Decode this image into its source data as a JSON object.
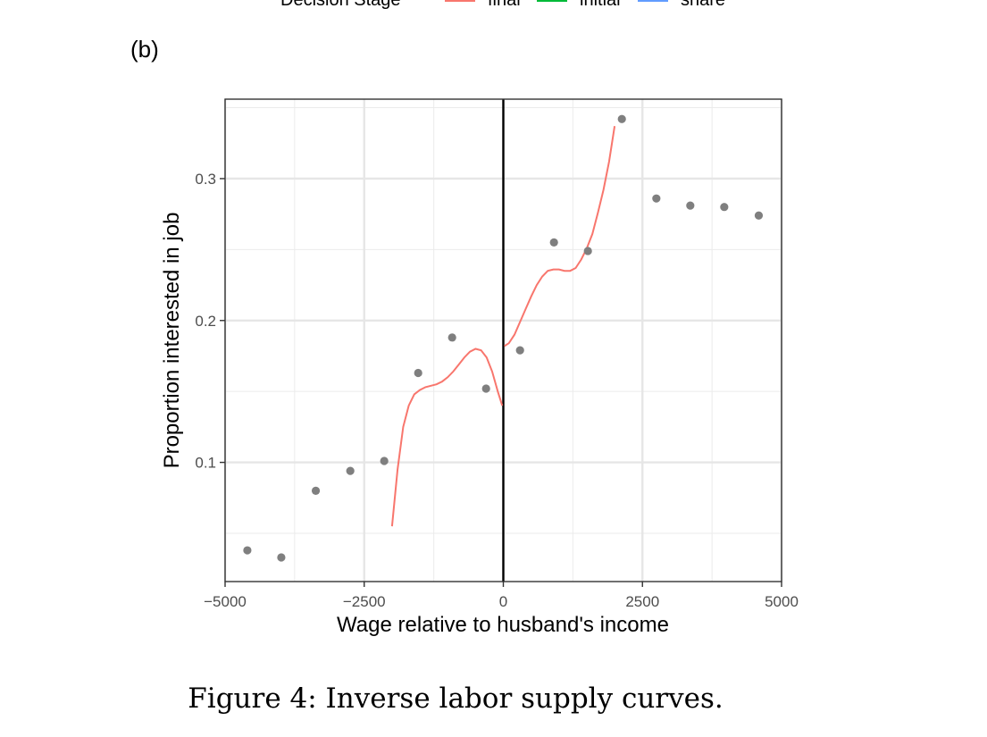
{
  "legend": {
    "title": "Decision Stage",
    "items": [
      {
        "label": "final",
        "color": "#F8766D"
      },
      {
        "label": "initial",
        "color": "#00BA38"
      },
      {
        "label": "share",
        "color": "#619CFF"
      }
    ]
  },
  "panel_label": "(b)",
  "caption": "Figure 4: Inverse labor supply curves.",
  "chart_data": {
    "type": "scatter",
    "title": "",
    "xlabel": "Wage relative to husband's income",
    "ylabel": "Proportion interested in job",
    "xlim": [
      -5000,
      5000
    ],
    "ylim": [
      0.016,
      0.356
    ],
    "x_ticks": [
      -5000,
      -2500,
      0,
      2500,
      5000
    ],
    "x_tick_labels": [
      "−5000",
      "−2500",
      "0",
      "2500",
      "5000"
    ],
    "y_ticks": [
      0.1,
      0.2,
      0.3
    ],
    "y_tick_labels": [
      "0.1",
      "0.2",
      "0.3"
    ],
    "x_minor_gridlines": [
      -3750,
      -1250,
      1250,
      3750
    ],
    "y_minor_gridlines": [
      0.05,
      0.15,
      0.25,
      0.35
    ],
    "grid": true,
    "reference_line_x": 0,
    "point_color": "#7F7F7F",
    "points": [
      {
        "x": -4600,
        "y": 0.038
      },
      {
        "x": -3990,
        "y": 0.033
      },
      {
        "x": -3370,
        "y": 0.08
      },
      {
        "x": -2750,
        "y": 0.094
      },
      {
        "x": -2140,
        "y": 0.101
      },
      {
        "x": -1530,
        "y": 0.163
      },
      {
        "x": -920,
        "y": 0.188
      },
      {
        "x": -310,
        "y": 0.152
      },
      {
        "x": 300,
        "y": 0.179
      },
      {
        "x": 910,
        "y": 0.255
      },
      {
        "x": 1520,
        "y": 0.249
      },
      {
        "x": 2130,
        "y": 0.342
      },
      {
        "x": 2750,
        "y": 0.286
      },
      {
        "x": 3360,
        "y": 0.281
      },
      {
        "x": 3970,
        "y": 0.28
      },
      {
        "x": 4590,
        "y": 0.274
      }
    ],
    "series": [
      {
        "name": "final",
        "color": "#F8766D",
        "segments": [
          [
            [
              -2000,
              0.055
            ],
            [
              -1900,
              0.095
            ],
            [
              -1800,
              0.125
            ],
            [
              -1700,
              0.14
            ],
            [
              -1600,
              0.148
            ],
            [
              -1500,
              0.151
            ],
            [
              -1400,
              0.153
            ],
            [
              -1300,
              0.154
            ],
            [
              -1200,
              0.155
            ],
            [
              -1100,
              0.157
            ],
            [
              -1000,
              0.16
            ],
            [
              -900,
              0.164
            ],
            [
              -800,
              0.169
            ],
            [
              -700,
              0.174
            ],
            [
              -600,
              0.178
            ],
            [
              -500,
              0.18
            ],
            [
              -400,
              0.179
            ],
            [
              -300,
              0.174
            ],
            [
              -200,
              0.164
            ],
            [
              -100,
              0.15
            ],
            [
              -20,
              0.14
            ]
          ],
          [
            [
              20,
              0.182
            ],
            [
              100,
              0.184
            ],
            [
              200,
              0.19
            ],
            [
              300,
              0.199
            ],
            [
              400,
              0.208
            ],
            [
              500,
              0.217
            ],
            [
              600,
              0.225
            ],
            [
              700,
              0.231
            ],
            [
              800,
              0.235
            ],
            [
              900,
              0.236
            ],
            [
              1000,
              0.236
            ],
            [
              1100,
              0.235
            ],
            [
              1200,
              0.235
            ],
            [
              1300,
              0.237
            ],
            [
              1400,
              0.243
            ],
            [
              1500,
              0.251
            ],
            [
              1600,
              0.261
            ],
            [
              1700,
              0.276
            ],
            [
              1800,
              0.292
            ],
            [
              1900,
              0.312
            ],
            [
              2000,
              0.337
            ]
          ]
        ]
      }
    ]
  }
}
